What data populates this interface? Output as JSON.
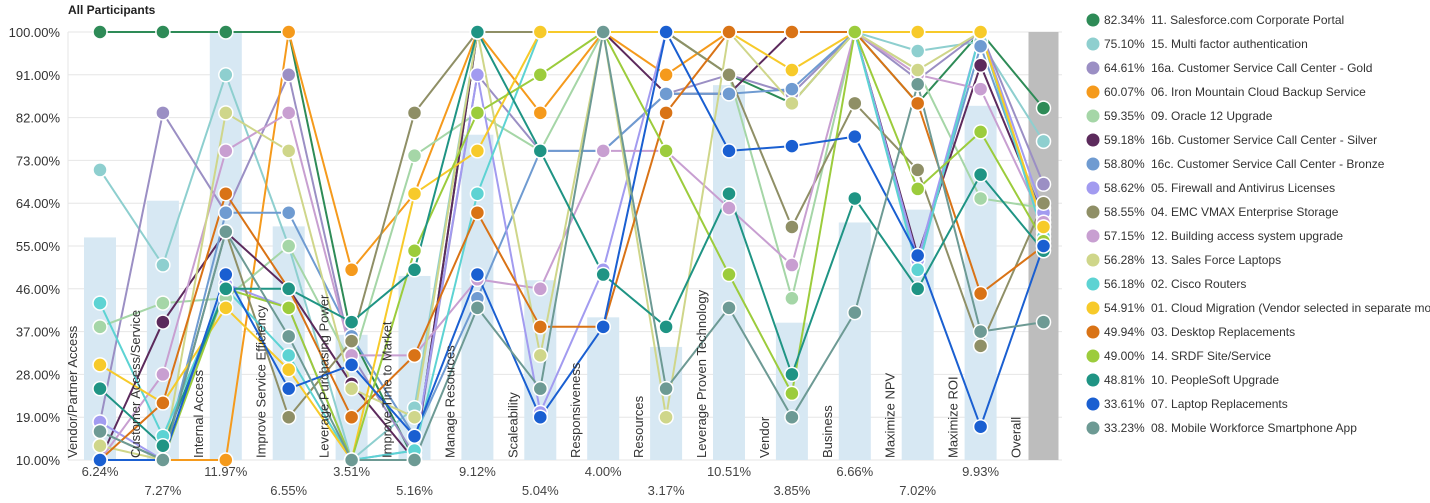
{
  "chart_data": {
    "type": "line",
    "title": "All Participants",
    "ylim": [
      10,
      100
    ],
    "yticks": [
      "10.00%",
      "19.00%",
      "28.00%",
      "37.00%",
      "46.00%",
      "55.00%",
      "64.00%",
      "73.00%",
      "82.00%",
      "91.00%",
      "100.00%"
    ],
    "categories": [
      "Vendor/Partner Access",
      "Customer Access/Service",
      "Internal Access",
      "Improve Service Efficiency",
      "Leverage Purchasing Power",
      "Improve Time to Market",
      "Manage Resources",
      "Scaleability",
      "Responsiveness",
      "Resources",
      "Leverage Proven Technology",
      "Vendor",
      "Business",
      "Maximize NPV",
      "Maximize ROI",
      "Overall"
    ],
    "category_labels": [
      "Vendor/Partner Access",
      "Customer Access/Service",
      "Internal Access",
      "Improve Service Efficiency",
      "Leverage Purchasing Power",
      "Improve Time to Market",
      "Manage Resources",
      "Scaleability",
      "Responsiveness",
      "Resources",
      "Leverage Proven Technology",
      "Vendor",
      "Business",
      "Maximize NPV",
      "Maximize ROI",
      "Overall"
    ],
    "weights": [
      6.24,
      7.27,
      11.97,
      6.55,
      3.51,
      5.16,
      9.12,
      5.04,
      4.0,
      3.17,
      10.51,
      3.85,
      6.66,
      7.02,
      9.93,
      100
    ],
    "weight_labels": [
      "6.24%",
      "7.27%",
      "11.97%",
      "6.55%",
      "3.51%",
      "5.16%",
      "9.12%",
      "5.04%",
      "4.00%",
      "3.17%",
      "10.51%",
      "3.85%",
      "6.66%",
      "7.02%",
      "9.93%",
      ""
    ],
    "series": [
      {
        "name": "11. Salesforce.com Corporate Portal",
        "pct": "82.34%",
        "color": "#2e8b57",
        "values": [
          100,
          100,
          100,
          100,
          36,
          10,
          100,
          100,
          100,
          100,
          91,
          85,
          100,
          85,
          100,
          84
        ]
      },
      {
        "name": "15. Multi factor authentication",
        "pct": "75.10%",
        "color": "#8ecfcf",
        "values": [
          71,
          51,
          91,
          55,
          10,
          21,
          100,
          100,
          100,
          100,
          100,
          100,
          100,
          96,
          98,
          77
        ]
      },
      {
        "name": "16a. Customer Service Call Center - Gold",
        "pct": "64.61%",
        "color": "#9b8fc4",
        "values": [
          18,
          83,
          62,
          91,
          32,
          11,
          91,
          75,
          75,
          87,
          91,
          87,
          100,
          90,
          100,
          68
        ]
      },
      {
        "name": "06. Iron Mountain Cloud Backup Service",
        "pct": "60.07%",
        "color": "#f59a1c",
        "values": [
          10,
          10,
          10,
          100,
          50,
          66,
          100,
          83,
          100,
          91,
          100,
          100,
          100,
          100,
          100,
          58
        ]
      },
      {
        "name": "09. Oracle 12 Upgrade",
        "pct": "59.35%",
        "color": "#a5d6a7",
        "values": [
          38,
          43,
          44,
          55,
          30,
          74,
          83,
          75,
          100,
          100,
          91,
          44,
          100,
          92,
          65,
          63
        ]
      },
      {
        "name": "16b. Customer Service Call Center - Silver",
        "pct": "59.18%",
        "color": "#5c2a5c",
        "values": [
          10,
          39,
          58,
          46,
          26,
          10,
          100,
          100,
          100,
          87,
          87,
          100,
          100,
          53,
          93,
          61
        ]
      },
      {
        "name": "16c. Customer Service Call Center - Bronze",
        "pct": "58.80%",
        "color": "#6f9bd1",
        "values": [
          10,
          10,
          62,
          62,
          36,
          15,
          44,
          75,
          75,
          87,
          87,
          88,
          100,
          52,
          97,
          60
        ]
      },
      {
        "name": "05. Firewall and Antivirus Licenses",
        "pct": "58.62%",
        "color": "#a29bf0",
        "values": [
          18,
          10,
          47,
          42,
          10,
          12,
          91,
          20,
          50,
          100,
          100,
          100,
          100,
          52,
          100,
          62
        ]
      },
      {
        "name": "04. EMC VMAX Enterprise Storage",
        "pct": "58.55%",
        "color": "#8f8f66",
        "values": [
          16,
          10,
          58,
          19,
          35,
          83,
          100,
          100,
          100,
          100,
          91,
          59,
          85,
          71,
          34,
          64
        ]
      },
      {
        "name": "12. Building access system upgrade",
        "pct": "57.15%",
        "color": "#c89fd1",
        "values": [
          10,
          28,
          75,
          83,
          32,
          32,
          48,
          46,
          75,
          75,
          63,
          51,
          100,
          91,
          88,
          60
        ]
      },
      {
        "name": "13. Sales Force Laptops",
        "pct": "56.28%",
        "color": "#cfd68a",
        "values": [
          13,
          10,
          83,
          75,
          25,
          19,
          100,
          32,
          100,
          19,
          100,
          85,
          100,
          92,
          100,
          59
        ]
      },
      {
        "name": "02. Cisco Routers",
        "pct": "56.18%",
        "color": "#5dd3d3",
        "values": [
          43,
          15,
          46,
          32,
          10,
          12,
          66,
          100,
          100,
          100,
          100,
          100,
          100,
          50,
          100,
          57
        ]
      },
      {
        "name": "01. Cloud Migration (Vendor selected in separate mo",
        "pct": "54.91%",
        "color": "#f7ca2a",
        "values": [
          30,
          22,
          42,
          29,
          10,
          66,
          75,
          100,
          100,
          100,
          100,
          92,
          100,
          100,
          100,
          59
        ]
      },
      {
        "name": "03. Desktop Replacements",
        "pct": "49.94%",
        "color": "#d97316",
        "values": [
          10,
          22,
          66,
          46,
          19,
          32,
          62,
          38,
          38,
          83,
          100,
          100,
          100,
          85,
          45,
          55
        ]
      },
      {
        "name": "14. SRDF Site/Service",
        "pct": "49.00%",
        "color": "#9ccc3c",
        "values": [
          10,
          10,
          46,
          42,
          10,
          54,
          83,
          91,
          100,
          75,
          49,
          24,
          100,
          67,
          79,
          56
        ]
      },
      {
        "name": "10. PeopleSoft Upgrade",
        "pct": "48.81%",
        "color": "#1f9484",
        "values": [
          25,
          13,
          46,
          46,
          39,
          50,
          100,
          75,
          49,
          38,
          66,
          28,
          65,
          46,
          70,
          54
        ]
      },
      {
        "name": "07. Laptop Replacements",
        "pct": "33.61%",
        "color": "#1a5fd1",
        "values": [
          10,
          10,
          49,
          25,
          30,
          15,
          49,
          19,
          38,
          100,
          75,
          76,
          78,
          53,
          17,
          55
        ]
      },
      {
        "name": "08. Mobile Workforce Smartphone App",
        "pct": "33.23%",
        "color": "#6d9a94",
        "values": [
          16,
          10,
          58,
          36,
          10,
          10,
          42,
          25,
          100,
          25,
          42,
          19,
          41,
          89,
          37,
          39
        ]
      }
    ]
  }
}
